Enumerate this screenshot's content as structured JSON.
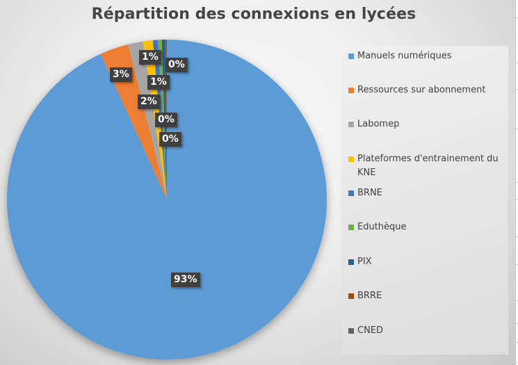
{
  "chart_data": {
    "type": "pie",
    "title": "Répartition des connexions en lycées",
    "categories": [
      "Manuels numériques",
      "Ressources sur abonnement",
      "Labomep",
      "Plateformes d'entrainement du KNE",
      "BRNE",
      "Eduthèque",
      "PIX",
      "BRRE",
      "CNED"
    ],
    "values": [
      93.2,
      2.9,
      1.5,
      1.0,
      0.5,
      0.4,
      0.3,
      0.1,
      0.1
    ],
    "data_labels": [
      "93%",
      "3%",
      "2%",
      "1%",
      "1%",
      "0%",
      "0%",
      "0%",
      "0%"
    ],
    "colors": [
      "#5B9BD5",
      "#ED7D31",
      "#A5A5A5",
      "#FFC000",
      "#4472C4",
      "#70AD47",
      "#255E91",
      "#9E480E",
      "#636363"
    ],
    "legend_position": "right",
    "start_angle": 0,
    "direction": "clockwise"
  },
  "labels": {
    "l93": "93%",
    "l3": "3%",
    "l2": "2%",
    "l1a": "1%",
    "l1b": "1%",
    "l0a": "0%",
    "l0b": "0%",
    "l0c": "0%"
  }
}
